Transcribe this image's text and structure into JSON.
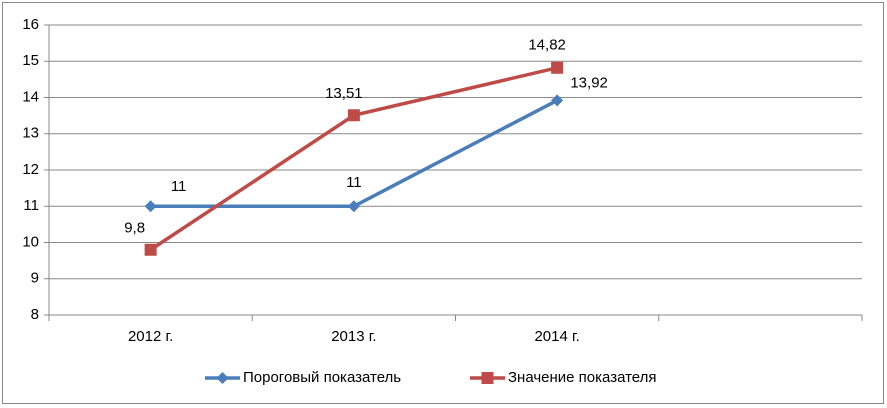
{
  "chart_data": {
    "type": "line",
    "categories": [
      "2012 г.",
      "2013 г.",
      "2014 г.",
      null
    ],
    "series": [
      {
        "name": "Пороговый показатель",
        "color": "#4a7ebb",
        "marker": "diamond",
        "values": [
          11,
          11,
          13.92,
          null
        ],
        "value_labels": [
          "11",
          "11",
          "13,92",
          null
        ]
      },
      {
        "name": "Значение показателя",
        "color": "#be4b48",
        "marker": "square",
        "values": [
          9.8,
          13.51,
          14.82,
          null
        ],
        "value_labels": [
          "9,8",
          "13,51",
          "14,82",
          null
        ]
      }
    ],
    "ylim": [
      8,
      16
    ],
    "yticks": [
      8,
      9,
      10,
      11,
      12,
      13,
      14,
      15,
      16
    ],
    "grid": true,
    "legend": "bottom"
  }
}
